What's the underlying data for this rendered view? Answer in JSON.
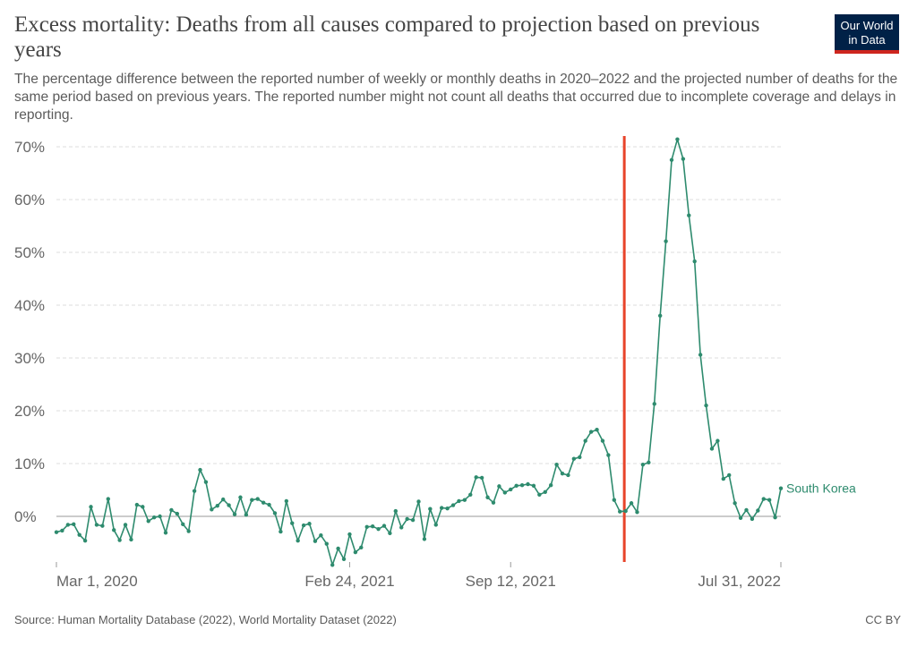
{
  "header": {
    "title": "Excess mortality: Deaths from all causes compared to projection based on previous years",
    "subtitle": "The percentage difference between the reported number of weekly or monthly deaths in 2020–2022 and the projected number of deaths for the same period based on previous years. The reported number might not count all deaths that occurred due to incomplete coverage and delays in reporting.",
    "logo_line1": "Our World",
    "logo_line2": "in Data"
  },
  "footer": {
    "source": "Source: Human Mortality Database (2022), World Mortality Dataset (2022)",
    "license": "CC BY"
  },
  "colors": {
    "series": "#2e8b6e",
    "marker_line": "#e8442a",
    "grid": "#dddddd",
    "logo_bg": "#002147",
    "logo_accent": "#ce261e"
  },
  "chart_data": {
    "type": "line",
    "x_ticks": [
      "Mar 1, 2020",
      "Feb 24, 2021",
      "Sep 12, 2021",
      "Jul 31, 2022"
    ],
    "y_ticks": [
      "0%",
      "10%",
      "20%",
      "30%",
      "40%",
      "50%",
      "60%",
      "70%"
    ],
    "ylim": [
      -10,
      72
    ],
    "grid": true,
    "vertical_marker_index": 99,
    "series": [
      {
        "name": "South Korea",
        "values": [
          -3.0,
          -2.7,
          -1.6,
          -1.5,
          -3.5,
          -4.6,
          1.8,
          -1.6,
          -1.8,
          3.3,
          -2.6,
          -4.5,
          -1.6,
          -4.4,
          2.2,
          1.8,
          -0.9,
          -0.2,
          0.0,
          -3.1,
          1.2,
          0.5,
          -1.5,
          -2.8,
          4.8,
          8.8,
          6.5,
          1.3,
          2.0,
          3.2,
          2.1,
          0.4,
          3.6,
          0.3,
          3.1,
          3.3,
          2.6,
          2.2,
          0.6,
          -2.9,
          2.9,
          -1.3,
          -4.6,
          -1.7,
          -1.4,
          -4.7,
          -3.6,
          -5.2,
          -9.2,
          -6.1,
          -8.1,
          -3.4,
          -6.8,
          -5.9,
          -2.0,
          -1.9,
          -2.4,
          -1.8,
          -3.2,
          1.0,
          -2.1,
          -0.5,
          -0.7,
          2.8,
          -4.3,
          1.4,
          -1.6,
          1.6,
          1.5,
          2.1,
          2.9,
          3.1,
          4.1,
          7.4,
          7.3,
          3.6,
          2.6,
          5.7,
          4.5,
          5.1,
          5.8,
          5.9,
          6.1,
          5.8,
          4.1,
          4.6,
          5.9,
          9.8,
          8.1,
          7.8,
          10.9,
          11.2,
          14.3,
          16.0,
          16.4,
          14.3,
          11.6,
          3.1,
          0.9,
          1.0,
          2.5,
          0.8,
          9.8,
          10.2,
          21.3,
          38.0,
          52.1,
          67.5,
          71.4,
          67.7,
          57.0,
          48.3,
          30.6,
          21.0,
          12.8,
          14.3,
          7.1,
          7.8,
          2.5,
          -0.3,
          1.2,
          -0.5,
          1.1,
          3.3,
          3.1,
          -0.2,
          5.3
        ]
      }
    ]
  }
}
